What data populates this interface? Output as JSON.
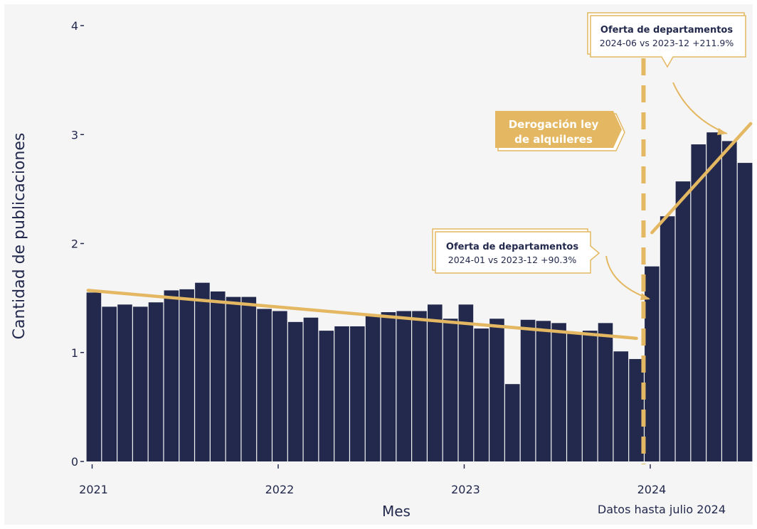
{
  "chart_data": {
    "type": "bar",
    "xlabel": "Mes",
    "ylabel": "Cantidad de publicaciones",
    "caption": "Datos hasta julio 2024",
    "ylim": [
      0,
      4
    ],
    "yticks": [
      "0",
      "1",
      "2",
      "3",
      "4"
    ],
    "xticks": [
      "2021",
      "2022",
      "2023",
      "2024"
    ],
    "grid": false,
    "colors": {
      "bar": "#23294d",
      "accent": "#e4b862",
      "background": "#f5f5f5",
      "text": "#23294d"
    },
    "categories": [
      "2021-01",
      "2021-02",
      "2021-03",
      "2021-04",
      "2021-05",
      "2021-06",
      "2021-07",
      "2021-08",
      "2021-09",
      "2021-10",
      "2021-11",
      "2021-12",
      "2022-01",
      "2022-02",
      "2022-03",
      "2022-04",
      "2022-05",
      "2022-06",
      "2022-07",
      "2022-08",
      "2022-09",
      "2022-10",
      "2022-11",
      "2022-12",
      "2023-01",
      "2023-02",
      "2023-03",
      "2023-04",
      "2023-05",
      "2023-06",
      "2023-07",
      "2023-08",
      "2023-09",
      "2023-10",
      "2023-11",
      "2023-12",
      "2024-01",
      "2024-02",
      "2024-03",
      "2024-04",
      "2024-05",
      "2024-06",
      "2024-07"
    ],
    "values": [
      1.55,
      1.42,
      1.44,
      1.42,
      1.46,
      1.57,
      1.58,
      1.64,
      1.56,
      1.51,
      1.51,
      1.4,
      1.38,
      1.28,
      1.32,
      1.2,
      1.24,
      1.24,
      1.35,
      1.37,
      1.38,
      1.38,
      1.44,
      1.31,
      1.44,
      1.22,
      1.31,
      0.71,
      1.3,
      1.29,
      1.27,
      1.18,
      1.2,
      1.27,
      1.01,
      0.94,
      1.79,
      2.25,
      2.57,
      2.91,
      3.02,
      2.94,
      2.74
    ],
    "trend_before": {
      "from": [
        "2021-01",
        1.57
      ],
      "to": [
        "2023-12",
        1.13
      ]
    },
    "trend_after": {
      "from": [
        "2024-01",
        2.1
      ],
      "to": [
        "2024-07",
        3.1
      ]
    },
    "event_line_at": "2023-12",
    "annotations": {
      "derogacion": {
        "line1": "Derogación ley",
        "line2": "de alquileres"
      },
      "top": {
        "title": "Oferta de departamentos",
        "text": "2024-06 vs 2023-12 +211.9%"
      },
      "mid": {
        "title": "Oferta de departamentos",
        "text": "2024-01 vs 2023-12 +90.3%"
      }
    }
  }
}
